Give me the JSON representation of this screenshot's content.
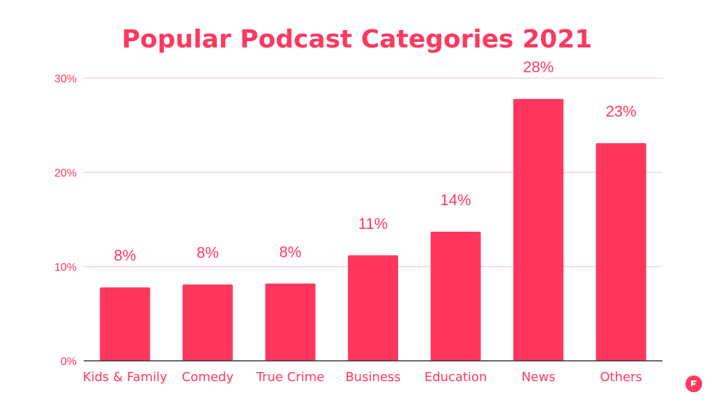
{
  "chart_data": {
    "type": "bar",
    "title": "Popular Podcast Categories 2021",
    "categories": [
      "Kids & Family",
      "Comedy",
      "True Crime",
      "Business",
      "Education",
      "News",
      "Others"
    ],
    "values": [
      7.8,
      8.1,
      8.2,
      11.2,
      13.7,
      27.8,
      23.1
    ],
    "data_labels": [
      "8%",
      "8%",
      "8%",
      "11%",
      "14%",
      "28%",
      "23%"
    ],
    "y_ticks": [
      0,
      10,
      20,
      30
    ],
    "y_tick_labels": [
      "0%",
      "10%",
      "20%",
      "30%"
    ],
    "ylim": [
      0,
      30
    ],
    "xlabel": "",
    "ylabel": "",
    "grid": true,
    "legend": "none",
    "bar_color": "#ff375f",
    "grid_color": "#f7d4dc",
    "axis_color": "#333333",
    "text_color": "#ff3860"
  },
  "branding": {
    "logo_icon": "brand-logo-icon",
    "logo_color": "#ff3860"
  }
}
